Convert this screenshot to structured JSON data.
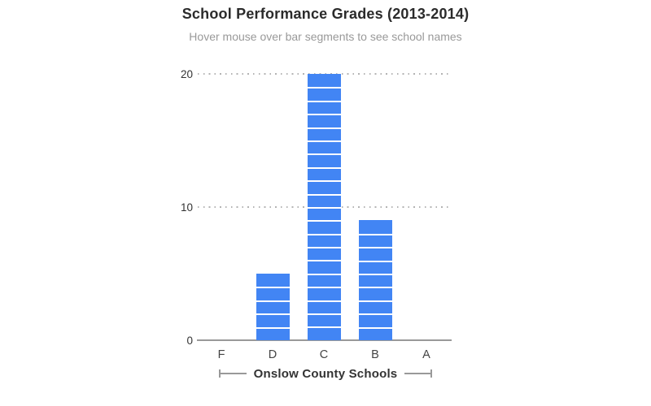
{
  "page": {
    "background": "#ffffff"
  },
  "header": {
    "title": "School Performance Grades (2013-2014)",
    "subtitle": "Hover mouse over bar segments to see school names"
  },
  "chart_data": {
    "type": "bar",
    "variant": "stacked-unit-segments",
    "title": "School Performance Grades (2013-2014)",
    "subtitle": "Hover mouse over bar segments to see school names",
    "categories": [
      "F",
      "D",
      "C",
      "B",
      "A"
    ],
    "values": [
      0,
      5,
      20,
      9,
      0
    ],
    "segment_unit": 1,
    "xlabel": "Onslow County Schools",
    "ylabel": "",
    "ylim": [
      0,
      20
    ],
    "yticks": [
      0,
      10,
      20
    ],
    "grid": "dotted horizontal gridlines at 10 and 20, solid baseline at 0",
    "legend": "none",
    "bar_color": "#4285f4",
    "segment_divider_color": "#ffffff",
    "axis_color": "#999999",
    "gridline_color": "#b3b3b3",
    "tick_label_color": "#333333",
    "title_color": "#2b2b2b",
    "subtitle_color": "#999999"
  }
}
